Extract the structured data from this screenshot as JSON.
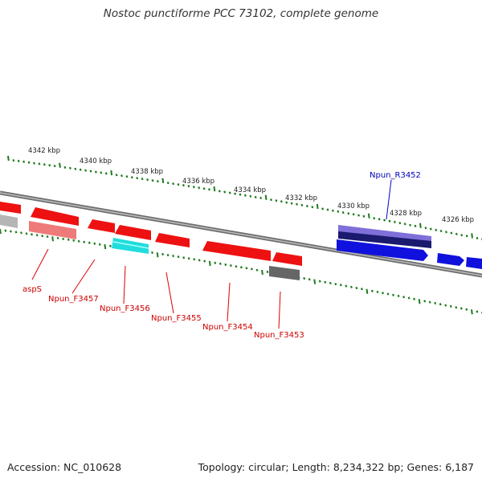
{
  "title": "Nostoc punctiforme PCC 73102, complete genome",
  "footer": {
    "accession": "Accession: NC_010628",
    "summary": "Topology: circular; Length: 8,234,322 bp; Genes: 6,187"
  },
  "colors": {
    "backbone": "#8a8a8a",
    "tick": "#1f7a1f",
    "reverse_gene": "#ee1111",
    "forward_gene": "#1111dd",
    "reverse_label": "#cc0000",
    "forward_label": "#0000bb",
    "rna_cyan": "#22dddd",
    "pseudo_gray": "#777777"
  },
  "tick_labels": [
    "4342 kbp",
    "4340 kbp",
    "4338 kbp",
    "4336 kbp",
    "4334 kbp",
    "4332 kbp",
    "4330 kbp",
    "4328 kbp",
    "4326 kbp"
  ],
  "gene_labels": [
    {
      "text": "aspS",
      "strand": "reverse"
    },
    {
      "text": "Npun_F3457",
      "strand": "reverse"
    },
    {
      "text": "Npun_F3456",
      "strand": "reverse"
    },
    {
      "text": "Npun_F3455",
      "strand": "reverse"
    },
    {
      "text": "Npun_F3454",
      "strand": "reverse"
    },
    {
      "text": "Npun_F3453",
      "strand": "reverse"
    },
    {
      "text": "Npun_R3452",
      "strand": "forward"
    }
  ]
}
